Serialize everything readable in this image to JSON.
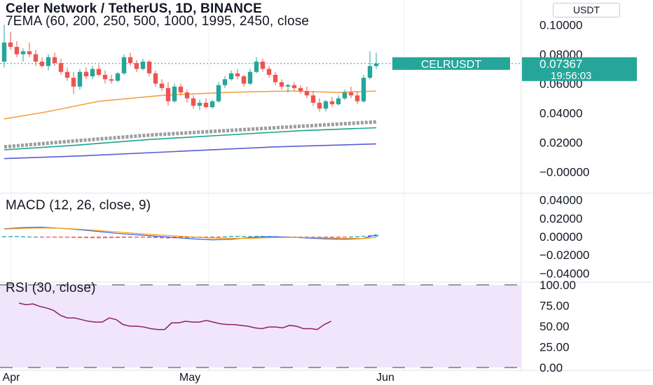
{
  "header": {
    "title": "Celer Network / TetherUS, 1D, BINANCE",
    "ema_legend": "7EMA (60, 200, 250, 500, 1000, 1995, 2450, close",
    "currency_button": "USDT"
  },
  "price_badge": {
    "symbol": "CELRUSDT",
    "price": "0.07367",
    "countdown": "19:56:03"
  },
  "macd_legend": "MACD (12, 26, close, 9)",
  "rsi_legend": "RSI (30, close)",
  "x_axis_labels": [
    {
      "label": "Apr",
      "day": 0
    },
    {
      "label": "May",
      "day": 30
    },
    {
      "label": "Jun",
      "day": 61
    }
  ],
  "colors": {
    "up": "#26a69a",
    "down": "#ef5350",
    "ema_orange": "#f5a044",
    "ema_gray": "#9e9e9e",
    "ema_teal": "#17a589",
    "ema_blue": "#5b5bd6",
    "macd_line": "#2962ff",
    "signal_line": "#ff9800",
    "rsi_line": "#8e1f6b",
    "rsi_band": "#f1e5fb",
    "badge": "#26a69a"
  },
  "chart_data": [
    {
      "type": "candlestick",
      "pane": "price",
      "title": "Celer Network / TetherUS, 1D, BINANCE",
      "ylim": [
        -0.005,
        0.105
      ],
      "y_ticks": [
        "0.10000",
        "0.08000",
        "0.06000",
        "0.04000",
        "0.02000",
        "−0.00000"
      ],
      "first_day_offset": -3,
      "candles": [
        [
          0.075,
          0.1,
          0.071,
          0.088
        ],
        [
          0.088,
          0.095,
          0.083,
          0.085
        ],
        [
          0.085,
          0.089,
          0.078,
          0.08
        ],
        [
          0.08,
          0.084,
          0.075,
          0.082
        ],
        [
          0.082,
          0.088,
          0.078,
          0.08
        ],
        [
          0.08,
          0.083,
          0.072,
          0.075
        ],
        [
          0.075,
          0.078,
          0.071,
          0.072
        ],
        [
          0.072,
          0.08,
          0.069,
          0.078
        ],
        [
          0.078,
          0.081,
          0.072,
          0.074
        ],
        [
          0.074,
          0.077,
          0.066,
          0.068
        ],
        [
          0.068,
          0.071,
          0.062,
          0.064
        ],
        [
          0.064,
          0.068,
          0.053,
          0.058
        ],
        [
          0.058,
          0.07,
          0.056,
          0.068
        ],
        [
          0.068,
          0.071,
          0.063,
          0.065
        ],
        [
          0.065,
          0.072,
          0.063,
          0.07
        ],
        [
          0.07,
          0.073,
          0.065,
          0.066
        ],
        [
          0.066,
          0.069,
          0.06,
          0.063
        ],
        [
          0.063,
          0.066,
          0.06,
          0.062
        ],
        [
          0.062,
          0.068,
          0.061,
          0.067
        ],
        [
          0.067,
          0.08,
          0.066,
          0.078
        ],
        [
          0.078,
          0.081,
          0.072,
          0.074
        ],
        [
          0.074,
          0.076,
          0.068,
          0.07
        ],
        [
          0.07,
          0.077,
          0.069,
          0.075
        ],
        [
          0.075,
          0.076,
          0.065,
          0.067
        ],
        [
          0.067,
          0.069,
          0.058,
          0.06
        ],
        [
          0.06,
          0.063,
          0.055,
          0.057
        ],
        [
          0.057,
          0.061,
          0.045,
          0.048
        ],
        [
          0.048,
          0.06,
          0.047,
          0.058
        ],
        [
          0.058,
          0.06,
          0.052,
          0.054
        ],
        [
          0.054,
          0.056,
          0.047,
          0.05
        ],
        [
          0.05,
          0.052,
          0.043,
          0.045
        ],
        [
          0.045,
          0.049,
          0.042,
          0.047
        ],
        [
          0.047,
          0.05,
          0.043,
          0.044
        ],
        [
          0.044,
          0.049,
          0.043,
          0.048
        ],
        [
          0.048,
          0.061,
          0.047,
          0.059
        ],
        [
          0.059,
          0.065,
          0.057,
          0.063
        ],
        [
          0.063,
          0.069,
          0.062,
          0.067
        ],
        [
          0.067,
          0.07,
          0.063,
          0.065
        ],
        [
          0.065,
          0.066,
          0.058,
          0.06
        ],
        [
          0.06,
          0.07,
          0.059,
          0.068
        ],
        [
          0.068,
          0.078,
          0.067,
          0.075
        ],
        [
          0.075,
          0.077,
          0.068,
          0.07
        ],
        [
          0.07,
          0.072,
          0.064,
          0.066
        ],
        [
          0.066,
          0.068,
          0.059,
          0.061
        ],
        [
          0.061,
          0.063,
          0.056,
          0.058
        ],
        [
          0.058,
          0.06,
          0.054,
          0.059
        ],
        [
          0.059,
          0.061,
          0.055,
          0.057
        ],
        [
          0.057,
          0.059,
          0.053,
          0.055
        ],
        [
          0.055,
          0.058,
          0.05,
          0.052
        ],
        [
          0.052,
          0.055,
          0.045,
          0.047
        ],
        [
          0.047,
          0.05,
          0.041,
          0.043
        ],
        [
          0.043,
          0.049,
          0.041,
          0.048
        ],
        [
          0.048,
          0.051,
          0.044,
          0.046
        ],
        [
          0.046,
          0.052,
          0.045,
          0.05
        ],
        [
          0.05,
          0.056,
          0.049,
          0.054
        ],
        [
          0.054,
          0.058,
          0.05,
          0.052
        ],
        [
          0.052,
          0.055,
          0.046,
          0.048
        ],
        [
          0.048,
          0.066,
          0.047,
          0.064
        ],
        [
          0.064,
          0.082,
          0.063,
          0.072
        ],
        [
          0.072,
          0.081,
          0.07,
          0.0737
        ]
      ],
      "series": [
        {
          "color_key": "ema_orange",
          "points": [
            [
              -3,
              0.036
            ],
            [
              4,
              0.041
            ],
            [
              12,
              0.048
            ],
            [
              22,
              0.052
            ],
            [
              32,
              0.054
            ],
            [
              42,
              0.055
            ],
            [
              50,
              0.054
            ],
            [
              56,
              0.055
            ]
          ]
        },
        {
          "color_key": "ema_gray",
          "dashed": true,
          "points": [
            [
              -3,
              0.017
            ],
            [
              8,
              0.021
            ],
            [
              20,
              0.025
            ],
            [
              32,
              0.028
            ],
            [
              44,
              0.031
            ],
            [
              56,
              0.034
            ]
          ]
        },
        {
          "color_key": "ema_teal",
          "points": [
            [
              -3,
              0.015
            ],
            [
              8,
              0.018
            ],
            [
              20,
              0.022
            ],
            [
              32,
              0.025
            ],
            [
              44,
              0.028
            ],
            [
              56,
              0.03
            ]
          ]
        },
        {
          "color_key": "ema_blue",
          "points": [
            [
              -3,
              0.009
            ],
            [
              10,
              0.011
            ],
            [
              25,
              0.014
            ],
            [
              40,
              0.017
            ],
            [
              56,
              0.019
            ]
          ]
        }
      ],
      "last_price": 0.07367
    },
    {
      "type": "macd",
      "pane": "macd",
      "title": "MACD (12, 26, close, 9)",
      "ylim": [
        -0.045,
        0.045
      ],
      "y_ticks": [
        "0.04000",
        "0.02000",
        "0.00000",
        "−0.02000",
        "−0.04000"
      ],
      "macd": [
        [
          -3,
          0.0085
        ],
        [
          0,
          0.0098
        ],
        [
          3,
          0.0102
        ],
        [
          6,
          0.009
        ],
        [
          9,
          0.0075
        ],
        [
          12,
          0.0055
        ],
        [
          15,
          0.0035
        ],
        [
          18,
          0.002
        ],
        [
          21,
          0.0005
        ],
        [
          24,
          -0.001
        ],
        [
          27,
          -0.0025
        ],
        [
          30,
          -0.0035
        ],
        [
          33,
          -0.003
        ],
        [
          36,
          -0.001
        ],
        [
          39,
          0.0
        ],
        [
          42,
          -0.0005
        ],
        [
          45,
          -0.0015
        ],
        [
          48,
          -0.0025
        ],
        [
          51,
          -0.003
        ],
        [
          54,
          -0.002
        ],
        [
          56,
          0.002
        ]
      ],
      "signal": [
        [
          -3,
          0.0082
        ],
        [
          0,
          0.009
        ],
        [
          3,
          0.0095
        ],
        [
          6,
          0.009
        ],
        [
          9,
          0.008
        ],
        [
          12,
          0.0065
        ],
        [
          15,
          0.005
        ],
        [
          18,
          0.0035
        ],
        [
          21,
          0.002
        ],
        [
          24,
          0.0008
        ],
        [
          27,
          -0.0005
        ],
        [
          30,
          -0.0015
        ],
        [
          33,
          -0.002
        ],
        [
          36,
          -0.0018
        ],
        [
          39,
          -0.0012
        ],
        [
          42,
          -0.0008
        ],
        [
          45,
          -0.001
        ],
        [
          48,
          -0.0015
        ],
        [
          51,
          -0.002
        ],
        [
          54,
          -0.002
        ],
        [
          56,
          -0.001
        ]
      ],
      "histogram": [
        0.0005,
        0.0006,
        0.0007,
        0.0004,
        0.0002,
        0.0,
        -0.0003,
        -0.0005,
        -0.0008,
        -0.001,
        -0.0012,
        -0.0014,
        -0.0015,
        -0.0016,
        -0.0017,
        -0.0018,
        -0.0017,
        -0.0016,
        -0.0015,
        -0.0014,
        -0.0013,
        -0.0012,
        -0.0012,
        -0.0014,
        -0.0016,
        -0.0018,
        -0.002,
        -0.0018,
        -0.0016,
        -0.0015,
        -0.0014,
        -0.0012,
        -0.001,
        -0.0008,
        -0.0005,
        0.0003,
        0.0006,
        0.0008,
        0.0007,
        0.0006,
        0.0008,
        0.0007,
        0.0005,
        0.0002,
        -0.0002,
        -0.0004,
        -0.0005,
        -0.0006,
        -0.0007,
        -0.0008,
        -0.0009,
        -0.0007,
        -0.0005,
        -0.0003,
        -0.0001,
        0.0002,
        0.0004,
        0.0009,
        0.0015,
        0.002
      ]
    },
    {
      "type": "line",
      "pane": "rsi",
      "title": "RSI (30, close)",
      "ylim": [
        0,
        100
      ],
      "y_ticks": [
        "100.00",
        "75.00",
        "50.00",
        "25.00",
        "0.00"
      ],
      "bands": [
        0,
        100
      ],
      "values": [
        [
          -3,
          78
        ],
        [
          -1,
          76
        ],
        [
          1,
          77
        ],
        [
          3,
          74
        ],
        [
          5,
          72
        ],
        [
          7,
          69
        ],
        [
          9,
          63
        ],
        [
          11,
          60
        ],
        [
          13,
          60
        ],
        [
          15,
          58
        ],
        [
          17,
          56
        ],
        [
          19,
          55
        ],
        [
          21,
          55
        ],
        [
          23,
          60
        ],
        [
          25,
          58
        ],
        [
          27,
          52
        ],
        [
          29,
          50
        ],
        [
          31,
          50
        ],
        [
          33,
          49
        ],
        [
          35,
          47
        ],
        [
          37,
          46
        ],
        [
          39,
          46
        ],
        [
          41,
          54
        ],
        [
          43,
          54
        ],
        [
          45,
          56
        ],
        [
          47,
          55
        ],
        [
          49,
          55
        ],
        [
          51,
          57
        ],
        [
          53,
          55
        ],
        [
          55,
          53
        ],
        [
          57,
          52
        ],
        [
          59,
          52
        ],
        [
          61,
          51
        ],
        [
          63,
          50
        ],
        [
          65,
          48
        ],
        [
          67,
          47
        ],
        [
          69,
          49
        ],
        [
          71,
          49
        ],
        [
          73,
          48
        ],
        [
          75,
          51
        ],
        [
          77,
          50
        ],
        [
          79,
          47
        ],
        [
          81,
          47
        ],
        [
          83,
          46
        ],
        [
          85,
          52
        ],
        [
          87,
          56
        ]
      ]
    }
  ]
}
